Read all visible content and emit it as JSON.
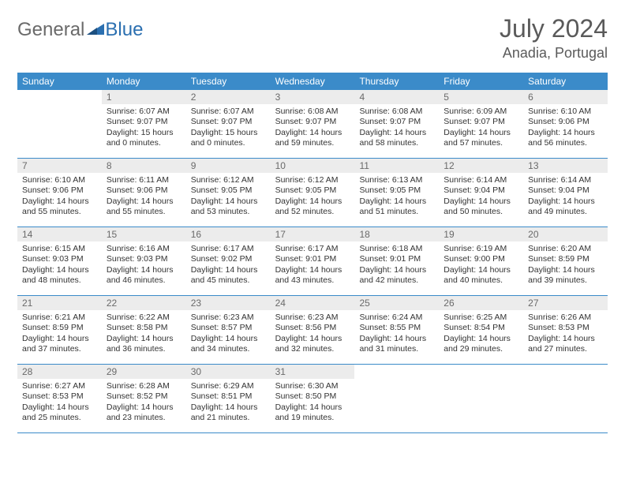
{
  "logo": {
    "text1": "General",
    "text2": "Blue"
  },
  "title": "July 2024",
  "location": "Anadia, Portugal",
  "colors": {
    "header_bg": "#3b8bc9",
    "header_fg": "#ffffff",
    "daynum_bg": "#ececec",
    "daynum_fg": "#6a6a6a",
    "rule": "#3b8bc9",
    "body_text": "#333333",
    "title_fg": "#5a5a5a"
  },
  "font": {
    "family": "Arial",
    "title_size": 32,
    "location_size": 18,
    "dow_size": 12,
    "daynum_size": 12,
    "body_size": 10.5
  },
  "dow": [
    "Sunday",
    "Monday",
    "Tuesday",
    "Wednesday",
    "Thursday",
    "Friday",
    "Saturday"
  ],
  "weeks": [
    [
      {
        "n": "",
        "sr": "",
        "ss": "",
        "dl": ""
      },
      {
        "n": "1",
        "sr": "6:07 AM",
        "ss": "9:07 PM",
        "dl": "15 hours and 0 minutes."
      },
      {
        "n": "2",
        "sr": "6:07 AM",
        "ss": "9:07 PM",
        "dl": "15 hours and 0 minutes."
      },
      {
        "n": "3",
        "sr": "6:08 AM",
        "ss": "9:07 PM",
        "dl": "14 hours and 59 minutes."
      },
      {
        "n": "4",
        "sr": "6:08 AM",
        "ss": "9:07 PM",
        "dl": "14 hours and 58 minutes."
      },
      {
        "n": "5",
        "sr": "6:09 AM",
        "ss": "9:07 PM",
        "dl": "14 hours and 57 minutes."
      },
      {
        "n": "6",
        "sr": "6:10 AM",
        "ss": "9:06 PM",
        "dl": "14 hours and 56 minutes."
      }
    ],
    [
      {
        "n": "7",
        "sr": "6:10 AM",
        "ss": "9:06 PM",
        "dl": "14 hours and 55 minutes."
      },
      {
        "n": "8",
        "sr": "6:11 AM",
        "ss": "9:06 PM",
        "dl": "14 hours and 55 minutes."
      },
      {
        "n": "9",
        "sr": "6:12 AM",
        "ss": "9:05 PM",
        "dl": "14 hours and 53 minutes."
      },
      {
        "n": "10",
        "sr": "6:12 AM",
        "ss": "9:05 PM",
        "dl": "14 hours and 52 minutes."
      },
      {
        "n": "11",
        "sr": "6:13 AM",
        "ss": "9:05 PM",
        "dl": "14 hours and 51 minutes."
      },
      {
        "n": "12",
        "sr": "6:14 AM",
        "ss": "9:04 PM",
        "dl": "14 hours and 50 minutes."
      },
      {
        "n": "13",
        "sr": "6:14 AM",
        "ss": "9:04 PM",
        "dl": "14 hours and 49 minutes."
      }
    ],
    [
      {
        "n": "14",
        "sr": "6:15 AM",
        "ss": "9:03 PM",
        "dl": "14 hours and 48 minutes."
      },
      {
        "n": "15",
        "sr": "6:16 AM",
        "ss": "9:03 PM",
        "dl": "14 hours and 46 minutes."
      },
      {
        "n": "16",
        "sr": "6:17 AM",
        "ss": "9:02 PM",
        "dl": "14 hours and 45 minutes."
      },
      {
        "n": "17",
        "sr": "6:17 AM",
        "ss": "9:01 PM",
        "dl": "14 hours and 43 minutes."
      },
      {
        "n": "18",
        "sr": "6:18 AM",
        "ss": "9:01 PM",
        "dl": "14 hours and 42 minutes."
      },
      {
        "n": "19",
        "sr": "6:19 AM",
        "ss": "9:00 PM",
        "dl": "14 hours and 40 minutes."
      },
      {
        "n": "20",
        "sr": "6:20 AM",
        "ss": "8:59 PM",
        "dl": "14 hours and 39 minutes."
      }
    ],
    [
      {
        "n": "21",
        "sr": "6:21 AM",
        "ss": "8:59 PM",
        "dl": "14 hours and 37 minutes."
      },
      {
        "n": "22",
        "sr": "6:22 AM",
        "ss": "8:58 PM",
        "dl": "14 hours and 36 minutes."
      },
      {
        "n": "23",
        "sr": "6:23 AM",
        "ss": "8:57 PM",
        "dl": "14 hours and 34 minutes."
      },
      {
        "n": "24",
        "sr": "6:23 AM",
        "ss": "8:56 PM",
        "dl": "14 hours and 32 minutes."
      },
      {
        "n": "25",
        "sr": "6:24 AM",
        "ss": "8:55 PM",
        "dl": "14 hours and 31 minutes."
      },
      {
        "n": "26",
        "sr": "6:25 AM",
        "ss": "8:54 PM",
        "dl": "14 hours and 29 minutes."
      },
      {
        "n": "27",
        "sr": "6:26 AM",
        "ss": "8:53 PM",
        "dl": "14 hours and 27 minutes."
      }
    ],
    [
      {
        "n": "28",
        "sr": "6:27 AM",
        "ss": "8:53 PM",
        "dl": "14 hours and 25 minutes."
      },
      {
        "n": "29",
        "sr": "6:28 AM",
        "ss": "8:52 PM",
        "dl": "14 hours and 23 minutes."
      },
      {
        "n": "30",
        "sr": "6:29 AM",
        "ss": "8:51 PM",
        "dl": "14 hours and 21 minutes."
      },
      {
        "n": "31",
        "sr": "6:30 AM",
        "ss": "8:50 PM",
        "dl": "14 hours and 19 minutes."
      },
      {
        "n": "",
        "sr": "",
        "ss": "",
        "dl": ""
      },
      {
        "n": "",
        "sr": "",
        "ss": "",
        "dl": ""
      },
      {
        "n": "",
        "sr": "",
        "ss": "",
        "dl": ""
      }
    ]
  ],
  "labels": {
    "sunrise": "Sunrise:",
    "sunset": "Sunset:",
    "daylight": "Daylight:"
  }
}
